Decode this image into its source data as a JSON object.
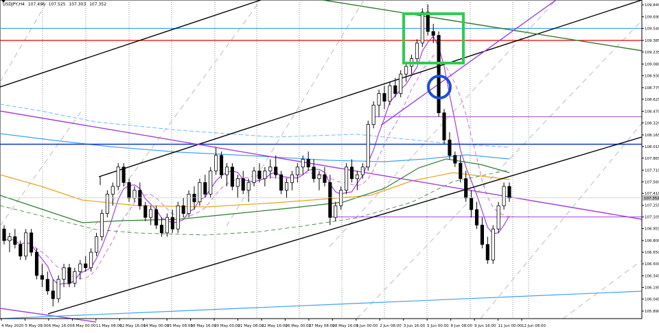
{
  "header": {
    "symbol": "USDJPY,H4",
    "values": [
      "107.496",
      "107.525",
      "107.303",
      "107.352"
    ]
  },
  "colors": {
    "candle": "#000000",
    "grid": "#8a8a8a",
    "green_box": "#2ecc52",
    "blue_circle": "#1a4fd6",
    "red_line": "#e00000",
    "light_blue_line": "#3da0ff",
    "dark_blue_line": "#0a33cc",
    "purple_line": "#a040d8",
    "dark_green_line": "#2f7a2f",
    "orange_ma": "#e8a317",
    "channel_line": "#000000",
    "dashed_ma_light": "#6db8ff",
    "dashed_ma_pink": "#d070d8",
    "dashed_grey": "#bbbbbb",
    "price_tag_bg": "#c0c0c0"
  },
  "chart_data": {
    "type": "candlestick",
    "symbol": "USDJPY",
    "timeframe": "H4",
    "ylim": [
      105.89,
      110.0
    ],
    "price_ticks": [
      "109.845",
      "109.690",
      "109.540",
      "109.385",
      "109.235",
      "109.080",
      "108.930",
      "108.775",
      "108.625",
      "108.470",
      "108.320",
      "108.165",
      "108.015",
      "107.865",
      "107.710",
      "107.560",
      "107.410",
      "107.255",
      "107.105",
      "106.955",
      "106.800",
      "106.650",
      "106.500",
      "106.345",
      "106.195",
      "106.045",
      "105.890"
    ],
    "current_price": "107.352",
    "x_labels": [
      "4 May 2020",
      "5 May 08:00",
      "6 May 16:00",
      "8 May 00:00",
      "11 May 08:00",
      "12 May 16:00",
      "14 May 00:00",
      "15 May 08:00",
      "18 May 16:00",
      "20 May 00:00",
      "21 May 08:00",
      "22 May 16:00",
      "26 May 00:00",
      "27 May 08:00",
      "28 May 16:00",
      "1 Jun 00:00",
      "2 Jun 08:00",
      "3 Jun 16:00",
      "5 Jun 00:00",
      "8 Jun 08:00",
      "9 Jun 16:00",
      "11 Jun 00:00",
      "12 Jun 08:00"
    ],
    "horizontal_levels": {
      "red": 109.385,
      "light_blue": 109.54,
      "purple_upper": 108.4,
      "dark_blue": 108.045,
      "purple_lower": 107.105
    },
    "ohlc": [
      [
        106.95,
        107.0,
        106.75,
        106.8
      ],
      [
        106.8,
        106.9,
        106.65,
        106.85
      ],
      [
        106.85,
        106.95,
        106.7,
        106.75
      ],
      [
        106.75,
        106.8,
        106.55,
        106.6
      ],
      [
        106.6,
        106.95,
        106.55,
        106.9
      ],
      [
        106.9,
        106.95,
        106.6,
        106.65
      ],
      [
        106.65,
        106.7,
        106.3,
        106.35
      ],
      [
        106.35,
        106.5,
        106.2,
        106.3
      ],
      [
        106.3,
        106.4,
        106.1,
        106.15
      ],
      [
        106.15,
        106.3,
        105.95,
        106.05
      ],
      [
        106.05,
        106.35,
        106.0,
        106.3
      ],
      [
        106.3,
        106.5,
        106.2,
        106.45
      ],
      [
        106.45,
        106.5,
        106.2,
        106.25
      ],
      [
        106.25,
        106.45,
        106.2,
        106.4
      ],
      [
        106.4,
        106.55,
        106.3,
        106.5
      ],
      [
        106.5,
        106.6,
        106.4,
        106.45
      ],
      [
        106.45,
        106.7,
        106.4,
        106.65
      ],
      [
        106.65,
        106.9,
        106.6,
        106.85
      ],
      [
        106.85,
        107.2,
        106.8,
        107.15
      ],
      [
        107.15,
        107.45,
        107.1,
        107.4
      ],
      [
        107.4,
        107.55,
        107.25,
        107.5
      ],
      [
        107.5,
        107.8,
        107.45,
        107.75
      ],
      [
        107.75,
        107.8,
        107.5,
        107.55
      ],
      [
        107.55,
        107.6,
        107.3,
        107.35
      ],
      [
        107.35,
        107.5,
        107.3,
        107.45
      ],
      [
        107.45,
        107.55,
        107.2,
        107.25
      ],
      [
        107.25,
        107.3,
        107.05,
        107.1
      ],
      [
        107.1,
        107.25,
        107.0,
        107.2
      ],
      [
        107.2,
        107.25,
        106.95,
        107.0
      ],
      [
        107.0,
        107.1,
        106.85,
        106.9
      ],
      [
        106.9,
        107.15,
        106.85,
        107.1
      ],
      [
        107.1,
        107.2,
        106.9,
        106.95
      ],
      [
        106.95,
        107.3,
        106.9,
        107.25
      ],
      [
        107.25,
        107.35,
        107.1,
        107.15
      ],
      [
        107.15,
        107.45,
        107.1,
        107.4
      ],
      [
        107.4,
        107.5,
        107.2,
        107.3
      ],
      [
        107.3,
        107.6,
        107.25,
        107.55
      ],
      [
        107.55,
        107.65,
        107.35,
        107.4
      ],
      [
        107.4,
        107.75,
        107.35,
        107.7
      ],
      [
        107.7,
        108.0,
        107.65,
        107.9
      ],
      [
        107.9,
        107.95,
        107.6,
        107.65
      ],
      [
        107.65,
        107.8,
        107.5,
        107.75
      ],
      [
        107.75,
        107.8,
        107.45,
        107.5
      ],
      [
        107.5,
        107.65,
        107.35,
        107.6
      ],
      [
        107.6,
        107.7,
        107.4,
        107.45
      ],
      [
        107.45,
        107.6,
        107.3,
        107.55
      ],
      [
        107.55,
        107.75,
        107.5,
        107.7
      ],
      [
        107.7,
        107.8,
        107.55,
        107.6
      ],
      [
        107.6,
        107.75,
        107.5,
        107.7
      ],
      [
        107.7,
        107.85,
        107.6,
        107.75
      ],
      [
        107.75,
        107.9,
        107.6,
        107.65
      ],
      [
        107.65,
        107.7,
        107.4,
        107.45
      ],
      [
        107.45,
        107.6,
        107.35,
        107.55
      ],
      [
        107.55,
        107.7,
        107.45,
        107.65
      ],
      [
        107.65,
        107.8,
        107.55,
        107.75
      ],
      [
        107.75,
        107.9,
        107.65,
        107.85
      ],
      [
        107.85,
        107.95,
        107.7,
        107.75
      ],
      [
        107.75,
        107.85,
        107.55,
        107.6
      ],
      [
        107.6,
        107.7,
        107.45,
        107.65
      ],
      [
        107.65,
        107.75,
        107.5,
        107.55
      ],
      [
        107.55,
        107.65,
        107.0,
        107.1
      ],
      [
        107.1,
        107.3,
        107.05,
        107.25
      ],
      [
        107.25,
        107.5,
        107.2,
        107.45
      ],
      [
        107.45,
        107.8,
        107.4,
        107.75
      ],
      [
        107.75,
        107.85,
        107.55,
        107.6
      ],
      [
        107.6,
        107.7,
        107.45,
        107.65
      ],
      [
        107.65,
        107.8,
        107.6,
        107.75
      ],
      [
        107.75,
        108.35,
        107.7,
        108.3
      ],
      [
        108.3,
        108.6,
        108.25,
        108.55
      ],
      [
        108.55,
        108.75,
        108.4,
        108.7
      ],
      [
        108.7,
        108.8,
        108.5,
        108.6
      ],
      [
        108.6,
        108.85,
        108.55,
        108.8
      ],
      [
        108.8,
        108.9,
        108.65,
        108.7
      ],
      [
        108.7,
        109.0,
        108.65,
        108.95
      ],
      [
        108.95,
        109.1,
        108.85,
        109.05
      ],
      [
        109.05,
        109.2,
        108.95,
        109.15
      ],
      [
        109.15,
        109.4,
        109.1,
        109.35
      ],
      [
        109.35,
        109.8,
        109.3,
        109.75
      ],
      [
        109.75,
        109.85,
        109.45,
        109.5
      ],
      [
        109.5,
        109.6,
        109.35,
        109.45
      ],
      [
        109.45,
        109.5,
        108.4,
        108.45
      ],
      [
        108.45,
        108.5,
        108.05,
        108.1
      ],
      [
        108.1,
        108.2,
        107.85,
        107.9
      ],
      [
        107.9,
        107.95,
        107.75,
        107.8
      ],
      [
        107.8,
        107.9,
        107.55,
        107.6
      ],
      [
        107.6,
        107.7,
        107.3,
        107.35
      ],
      [
        107.35,
        107.45,
        107.1,
        107.2
      ],
      [
        107.2,
        107.3,
        106.95,
        107.0
      ],
      [
        107.0,
        107.1,
        106.7,
        106.75
      ],
      [
        106.75,
        106.85,
        106.5,
        106.55
      ],
      [
        106.55,
        107.0,
        106.5,
        106.95
      ],
      [
        106.95,
        107.3,
        106.9,
        107.25
      ],
      [
        107.25,
        107.55,
        107.2,
        107.5
      ],
      [
        107.5,
        107.55,
        107.3,
        107.35
      ]
    ]
  }
}
